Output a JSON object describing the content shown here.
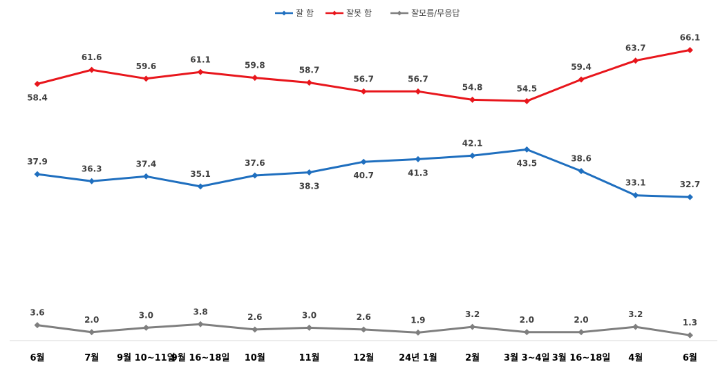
{
  "chart_data": {
    "type": "line",
    "title": "",
    "xlabel": "",
    "ylabel": "",
    "ylim": [
      0,
      70
    ],
    "grid": false,
    "legend_position": "top-center",
    "categories": [
      "6월",
      "7월",
      "9월 10~11일",
      "9월 16~18일",
      "10월",
      "11월",
      "12월",
      "24년 1월",
      "2월",
      "3월 3~4일",
      "3월 16~18일",
      "4월",
      "6월"
    ],
    "series": [
      {
        "name": "잘 함",
        "color": "#1F6FBF",
        "values": [
          37.9,
          36.3,
          37.4,
          35.1,
          37.6,
          38.3,
          40.7,
          41.3,
          42.1,
          43.5,
          38.6,
          33.1,
          32.7
        ],
        "labels": [
          "37.9",
          "36.3",
          "37.4",
          "35.1",
          "37.6",
          "38.3",
          "40.7",
          "41.3",
          "42.1",
          "43.5",
          "38.6",
          "33.1",
          "32.7"
        ]
      },
      {
        "name": "잘못 함",
        "color": "#E8161C",
        "values": [
          58.4,
          61.6,
          59.6,
          61.1,
          59.8,
          58.7,
          56.7,
          56.7,
          54.8,
          54.5,
          59.4,
          63.7,
          66.1
        ],
        "labels": [
          "58.4",
          "61.6",
          "59.6",
          "61.1",
          "59.8",
          "58.7",
          "56.7",
          "56.7",
          "54.8",
          "54.5",
          "59.4",
          "63.7",
          "66.1"
        ]
      },
      {
        "name": "잘모름/무응답",
        "color": "#7F7F7F",
        "values": [
          3.6,
          2.0,
          3.0,
          3.8,
          2.6,
          3.0,
          2.6,
          1.9,
          3.2,
          2.0,
          2.0,
          3.2,
          1.3
        ],
        "labels": [
          "3.6",
          "2.0",
          "3.0",
          "3.8",
          "2.6",
          "3.0",
          "2.6",
          "1.9",
          "3.2",
          "2.0",
          "2.0",
          "3.2",
          "1.3"
        ]
      }
    ]
  }
}
